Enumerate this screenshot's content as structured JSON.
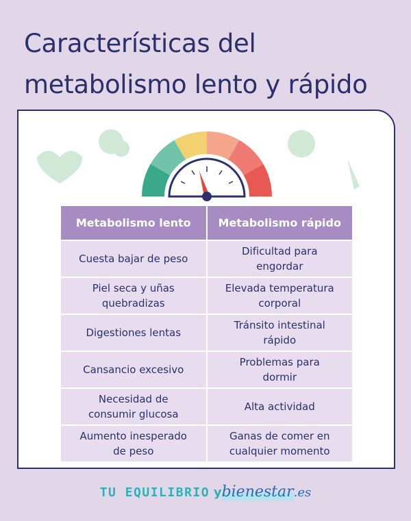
{
  "title": "Características del metabolismo lento y rápido",
  "table": {
    "headers": [
      "Metabolismo lento",
      "Metabolismo rápido"
    ],
    "rows": [
      [
        "Cuesta bajar de peso",
        "Dificultad para engordar"
      ],
      [
        "Piel seca y uñas quebradizas",
        "Elevada temperatura corporal"
      ],
      [
        "Digestiones lentas",
        "Tránsito intestinal rápido"
      ],
      [
        "Cansancio excesivo",
        "Problemas para dormir"
      ],
      [
        "Necesidad de consumir glucosa",
        "Alta actividad"
      ],
      [
        "Aumento inesperado de peso",
        "Ganas de comer en cualquier momento"
      ]
    ]
  },
  "brand": {
    "name": "TU EQUILIBRIO",
    "connector": "y",
    "word": "bienestar",
    "suffix": ".es"
  }
}
